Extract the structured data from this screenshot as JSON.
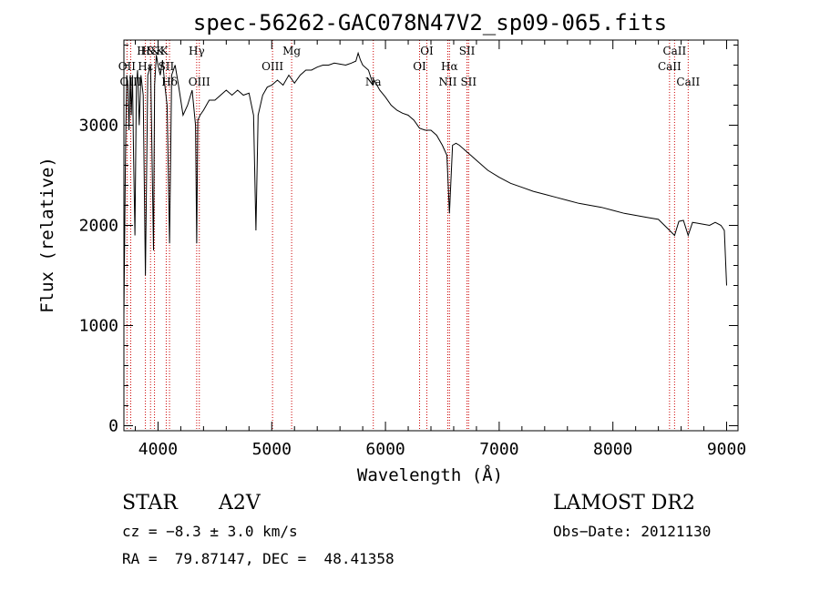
{
  "chart_data": {
    "type": "line",
    "title": "spec-56262-GAC078N47V2_sp09-065.fits",
    "xlabel": "Wavelength (Å)",
    "ylabel": "Flux (relative)",
    "xlim": [
      3700,
      9100
    ],
    "ylim": [
      -50,
      3850
    ],
    "x_ticks": [
      4000,
      5000,
      6000,
      7000,
      8000,
      9000
    ],
    "y_ticks": [
      0,
      1000,
      2000,
      3000
    ],
    "x_tick_labels": [
      "4000",
      "5000",
      "6000",
      "7000",
      "8000",
      "9000"
    ],
    "y_tick_labels": [
      "0",
      "1000",
      "2000",
      "3000"
    ],
    "grid": false,
    "series": [
      {
        "x": [
          3700,
          3712,
          3718,
          3725,
          3735,
          3745,
          3755,
          3765,
          3775,
          3785,
          3797,
          3810,
          3820,
          3835,
          3850,
          3870,
          3889,
          3910,
          3935,
          3960,
          3970,
          3985,
          4000,
          4020,
          4040,
          4060,
          4080,
          4101,
          4120,
          4150,
          4180,
          4220,
          4260,
          4300,
          4330,
          4340,
          4350,
          4370,
          4400,
          4450,
          4500,
          4550,
          4600,
          4650,
          4700,
          4750,
          4800,
          4840,
          4861,
          4880,
          4920,
          4960,
          5000,
          5050,
          5100,
          5150,
          5200,
          5250,
          5300,
          5350,
          5400,
          5450,
          5500,
          5550,
          5600,
          5650,
          5700,
          5740,
          5760,
          5780,
          5800,
          5850,
          5893,
          5900,
          5950,
          6000,
          6050,
          6100,
          6150,
          6200,
          6250,
          6300,
          6350,
          6400,
          6450,
          6500,
          6540,
          6563,
          6590,
          6620,
          6650,
          6700,
          6750,
          6800,
          6900,
          7000,
          7100,
          7200,
          7300,
          7400,
          7500,
          7600,
          7700,
          7800,
          7900,
          8000,
          8100,
          8200,
          8300,
          8400,
          8498,
          8542,
          8580,
          8620,
          8662,
          8700,
          8750,
          8800,
          8850,
          8900,
          8950,
          8980,
          9000
        ],
        "y": [
          1100,
          2500,
          3000,
          3500,
          3400,
          2950,
          3500,
          3100,
          3500,
          2700,
          1900,
          3400,
          3550,
          3000,
          3500,
          3300,
          1500,
          3500,
          3600,
          1750,
          3400,
          3700,
          3600,
          3500,
          3650,
          3400,
          3200,
          1820,
          3500,
          3600,
          3400,
          3100,
          3200,
          3350,
          3000,
          1820,
          3050,
          3100,
          3150,
          3250,
          3250,
          3300,
          3350,
          3300,
          3350,
          3300,
          3320,
          3100,
          1950,
          3100,
          3300,
          3380,
          3400,
          3450,
          3400,
          3500,
          3420,
          3500,
          3550,
          3550,
          3580,
          3600,
          3600,
          3620,
          3610,
          3600,
          3620,
          3640,
          3720,
          3650,
          3600,
          3550,
          3400,
          3450,
          3350,
          3280,
          3200,
          3150,
          3120,
          3100,
          3050,
          2970,
          2950,
          2950,
          2900,
          2800,
          2700,
          2120,
          2800,
          2820,
          2800,
          2750,
          2700,
          2650,
          2550,
          2480,
          2420,
          2380,
          2340,
          2310,
          2280,
          2250,
          2220,
          2200,
          2180,
          2150,
          2120,
          2100,
          2080,
          2060,
          1950,
          1900,
          2040,
          2050,
          1900,
          2030,
          2020,
          2010,
          2000,
          2030,
          2000,
          1950,
          1400
        ]
      }
    ],
    "spectral_lines": [
      {
        "label": "H&K",
        "x": 3934,
        "row": 0
      },
      {
        "label": "H&K",
        "x": 3969,
        "row": 0
      },
      {
        "label": "OII",
        "x": 3727,
        "row": 1
      },
      {
        "label": "Hε",
        "x": 3889,
        "row": 1
      },
      {
        "label": "SII",
        "x": 4072,
        "row": 1
      },
      {
        "label": "OIII",
        "x": 3760,
        "row": 2
      },
      {
        "label": "Hδ",
        "x": 4101,
        "row": 2
      },
      {
        "label": "Hγ",
        "x": 4340,
        "row": 0
      },
      {
        "label": "OIII",
        "x": 4363,
        "row": 2
      },
      {
        "label": "OIII",
        "x": 5007,
        "row": 1
      },
      {
        "label": "Mg",
        "x": 5175,
        "row": 0
      },
      {
        "label": "Na",
        "x": 5893,
        "row": 2
      },
      {
        "label": "OI",
        "x": 6300,
        "row": 1
      },
      {
        "label": "OI",
        "x": 6364,
        "row": 0
      },
      {
        "label": "Hα",
        "x": 6563,
        "row": 1
      },
      {
        "label": "NII",
        "x": 6548,
        "row": 2
      },
      {
        "label": "SII",
        "x": 6717,
        "row": 0
      },
      {
        "label": "SII",
        "x": 6731,
        "row": 2
      },
      {
        "label": "CaII",
        "x": 8498,
        "row": 1
      },
      {
        "label": "CaII",
        "x": 8542,
        "row": 0
      },
      {
        "label": "CaII",
        "x": 8662,
        "row": 2
      }
    ],
    "line_color": "#000000",
    "marker_color": "#cc0000"
  },
  "info": {
    "class": "STAR",
    "subclass": "A2V",
    "survey": "LAMOST DR2",
    "cz": "cz = −8.3 ± 3.0 km/s",
    "obs_date": "Obs−Date: 20121130",
    "coords": "RA =  79.87147, DEC =  48.41358"
  }
}
